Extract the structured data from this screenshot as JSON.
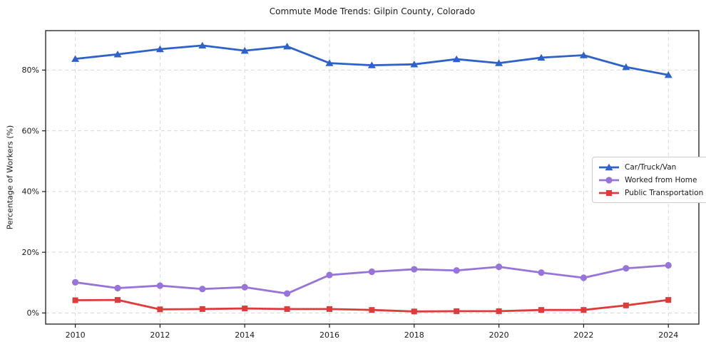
{
  "chart_data": {
    "type": "line",
    "title": "Commute Mode Trends: Gilpin County, Colorado",
    "xlabel": "",
    "ylabel": "Percentage of Workers (%)",
    "x": [
      2010,
      2011,
      2012,
      2013,
      2014,
      2015,
      2016,
      2017,
      2018,
      2019,
      2020,
      2021,
      2022,
      2023,
      2024
    ],
    "series": [
      {
        "name": "Car/Truck/Van",
        "color": "#2e62c8",
        "marker": "triangle",
        "values": [
          83.7,
          85.2,
          86.9,
          88.1,
          86.4,
          87.8,
          82.3,
          81.6,
          81.9,
          83.6,
          82.3,
          84.1,
          84.9,
          81.0,
          78.4
        ]
      },
      {
        "name": "Worked from Home",
        "color": "#9674d8",
        "marker": "circle",
        "values": [
          10.1,
          8.2,
          9.0,
          7.9,
          8.5,
          6.4,
          12.5,
          13.6,
          14.4,
          14.0,
          15.2,
          13.3,
          11.6,
          14.7,
          15.7
        ]
      },
      {
        "name": "Public Transportation",
        "color": "#dd3c3c",
        "marker": "square",
        "values": [
          4.2,
          4.3,
          1.2,
          1.3,
          1.5,
          1.3,
          1.3,
          1.0,
          0.5,
          0.6,
          0.6,
          1.0,
          1.0,
          2.5,
          4.3
        ]
      }
    ],
    "x_tick_values": [
      2010,
      2012,
      2014,
      2016,
      2018,
      2020,
      2022,
      2024
    ],
    "x_tick_labels": [
      "2010",
      "2012",
      "2014",
      "2016",
      "2018",
      "2020",
      "2022",
      "2024"
    ],
    "y_tick_values": [
      0,
      20,
      40,
      60,
      80
    ],
    "y_tick_labels": [
      "0%",
      "20%",
      "40%",
      "60%",
      "80%"
    ],
    "xlim": [
      2009.3,
      2024.72
    ],
    "ylim": [
      -3.65,
      93.0
    ],
    "grid": true,
    "legend_position": "center right"
  },
  "colors": {
    "grid": "#d8d8d8",
    "axis": "#1a1a1a",
    "text": "#1a1a1a",
    "background": "#ffffff"
  }
}
